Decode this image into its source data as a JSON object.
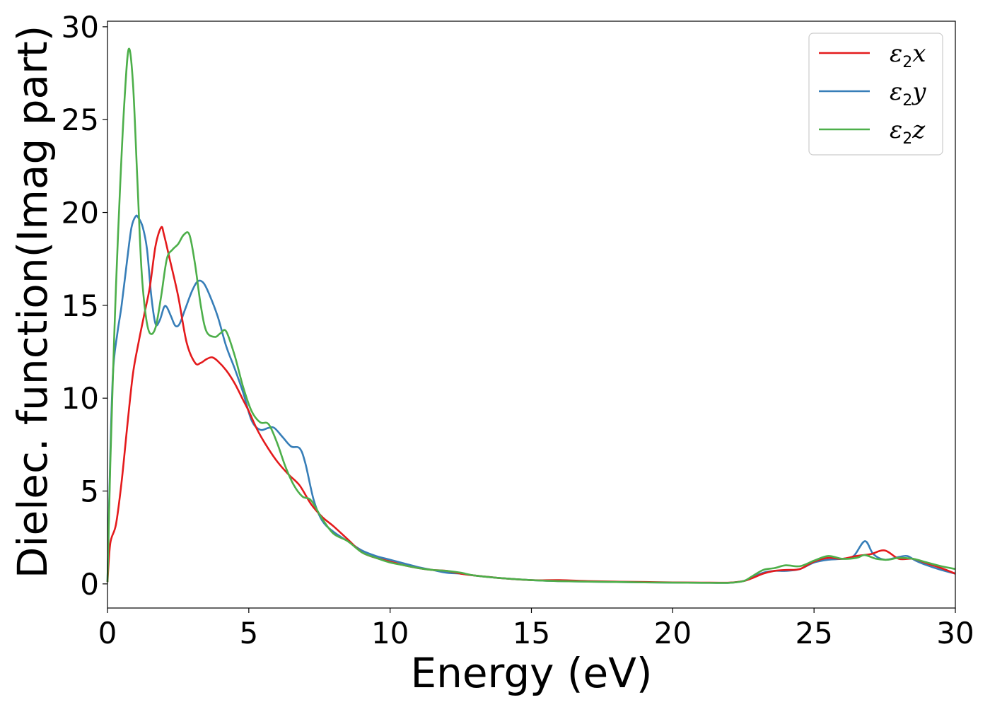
{
  "chart_data": {
    "type": "line",
    "title": "",
    "xlabel": "Energy (eV)",
    "ylabel": "Dielec. function(Imag part)",
    "xlim": [
      0,
      30
    ],
    "ylim": [
      -1.3,
      30.3
    ],
    "xticks": [
      0,
      5,
      10,
      15,
      20,
      25,
      30
    ],
    "yticks": [
      0,
      5,
      10,
      15,
      20,
      25,
      30
    ],
    "grid": false,
    "legend_position": "top-right",
    "series": [
      {
        "name_base": "ε",
        "name_sub": "2",
        "name_suffix": "x",
        "color": "#e41a1c",
        "x": [
          0,
          0.1,
          0.3,
          0.5,
          0.7,
          0.9,
          1.1,
          1.3,
          1.5,
          1.7,
          1.9,
          2.0,
          2.2,
          2.5,
          2.8,
          3.1,
          3.3,
          3.5,
          3.7,
          3.9,
          4.2,
          4.5,
          4.8,
          5.0,
          5.3,
          5.6,
          6.0,
          6.4,
          6.8,
          7.2,
          7.6,
          8.0,
          8.5,
          9.0,
          9.5,
          10.0,
          10.5,
          11.0,
          11.5,
          12.0,
          12.5,
          13.0,
          14.0,
          15.0,
          16.0,
          17.0,
          18.0,
          19.0,
          20.0,
          21.0,
          22.0,
          22.5,
          22.8,
          23.2,
          23.6,
          24.0,
          24.5,
          25.0,
          25.5,
          26.0,
          26.5,
          27.0,
          27.5,
          28.0,
          28.5,
          29.0,
          29.5,
          30.0
        ],
        "y": [
          0.1,
          2.2,
          3.2,
          5.5,
          8.5,
          11.3,
          13.0,
          14.5,
          16.0,
          18.2,
          19.2,
          18.8,
          17.5,
          15.5,
          13.0,
          11.9,
          11.9,
          12.1,
          12.2,
          12.0,
          11.5,
          10.8,
          9.9,
          9.3,
          8.3,
          7.5,
          6.6,
          5.9,
          5.3,
          4.3,
          3.6,
          3.1,
          2.4,
          1.7,
          1.4,
          1.2,
          1.0,
          0.85,
          0.75,
          0.7,
          0.55,
          0.45,
          0.3,
          0.2,
          0.2,
          0.15,
          0.12,
          0.1,
          0.08,
          0.07,
          0.07,
          0.15,
          0.3,
          0.55,
          0.7,
          0.75,
          0.8,
          1.2,
          1.4,
          1.35,
          1.5,
          1.6,
          1.8,
          1.35,
          1.35,
          1.1,
          0.85,
          0.55
        ]
      },
      {
        "name_base": "ε",
        "name_sub": "2",
        "name_suffix": "y",
        "color": "#377eb8",
        "x": [
          0,
          0.1,
          0.2,
          0.35,
          0.5,
          0.7,
          0.85,
          1.0,
          1.1,
          1.25,
          1.4,
          1.55,
          1.7,
          1.85,
          2.0,
          2.1,
          2.25,
          2.4,
          2.55,
          2.75,
          3.0,
          3.2,
          3.4,
          3.6,
          3.9,
          4.2,
          4.5,
          4.8,
          5.1,
          5.4,
          5.7,
          5.9,
          6.2,
          6.5,
          6.8,
          7.0,
          7.3,
          7.6,
          8.0,
          8.5,
          9.0,
          9.5,
          10.0,
          10.5,
          11.0,
          11.5,
          12.0,
          12.5,
          13.0,
          14.0,
          15.0,
          16.0,
          17.0,
          18.0,
          19.0,
          20.0,
          21.0,
          22.0,
          22.5,
          22.8,
          23.2,
          23.6,
          24.0,
          24.5,
          25.0,
          25.5,
          26.0,
          26.4,
          26.8,
          27.1,
          27.5,
          28.0,
          28.3,
          28.6,
          29.0,
          29.5,
          30.0
        ],
        "y": [
          0.1,
          7.0,
          11.5,
          13.5,
          15.0,
          17.5,
          19.2,
          19.8,
          19.7,
          19.2,
          18.0,
          15.5,
          14.0,
          14.2,
          14.9,
          14.9,
          14.4,
          13.9,
          14.0,
          14.8,
          15.8,
          16.3,
          16.2,
          15.6,
          14.4,
          12.8,
          11.6,
          10.3,
          8.8,
          8.3,
          8.4,
          8.4,
          7.9,
          7.4,
          7.3,
          6.5,
          4.5,
          3.4,
          2.8,
          2.3,
          1.8,
          1.5,
          1.3,
          1.1,
          0.9,
          0.75,
          0.6,
          0.55,
          0.45,
          0.3,
          0.2,
          0.15,
          0.12,
          0.1,
          0.08,
          0.07,
          0.06,
          0.06,
          0.15,
          0.35,
          0.6,
          0.7,
          0.7,
          0.8,
          1.15,
          1.3,
          1.35,
          1.5,
          2.3,
          1.6,
          1.3,
          1.45,
          1.5,
          1.25,
          1.0,
          0.75,
          0.55
        ]
      },
      {
        "name_base": "ε",
        "name_sub": "2",
        "name_suffix": "z",
        "color": "#4daf4a",
        "x": [
          0,
          0.1,
          0.2,
          0.3,
          0.45,
          0.6,
          0.75,
          0.9,
          1.05,
          1.2,
          1.35,
          1.5,
          1.7,
          1.9,
          2.1,
          2.3,
          2.5,
          2.7,
          2.9,
          3.1,
          3.3,
          3.5,
          3.8,
          4.0,
          4.2,
          4.5,
          4.8,
          5.1,
          5.4,
          5.7,
          6.0,
          6.3,
          6.6,
          6.9,
          7.2,
          7.6,
          8.0,
          8.5,
          9.0,
          9.5,
          10.0,
          10.5,
          11.0,
          11.5,
          12.0,
          12.5,
          13.0,
          14.0,
          15.0,
          16.0,
          17.0,
          18.0,
          19.0,
          20.0,
          21.0,
          22.0,
          22.5,
          22.8,
          23.2,
          23.6,
          24.0,
          24.5,
          25.0,
          25.5,
          26.0,
          26.5,
          26.8,
          27.2,
          27.6,
          28.0,
          28.5,
          29.0,
          29.5,
          30.0
        ],
        "y": [
          0.1,
          6.5,
          11.5,
          16.0,
          21.5,
          26.0,
          28.8,
          27.0,
          22.0,
          17.0,
          14.5,
          13.5,
          13.8,
          15.5,
          17.5,
          18.0,
          18.3,
          18.8,
          18.8,
          17.2,
          15.0,
          13.6,
          13.3,
          13.5,
          13.6,
          12.3,
          10.6,
          9.3,
          8.7,
          8.6,
          7.6,
          6.3,
          5.3,
          4.7,
          4.5,
          3.5,
          2.7,
          2.3,
          1.7,
          1.4,
          1.15,
          1.0,
          0.85,
          0.75,
          0.7,
          0.6,
          0.45,
          0.3,
          0.2,
          0.15,
          0.12,
          0.1,
          0.08,
          0.07,
          0.06,
          0.06,
          0.15,
          0.4,
          0.75,
          0.85,
          1.0,
          0.95,
          1.25,
          1.5,
          1.35,
          1.4,
          1.55,
          1.35,
          1.3,
          1.4,
          1.35,
          1.15,
          0.95,
          0.8
        ]
      }
    ]
  }
}
